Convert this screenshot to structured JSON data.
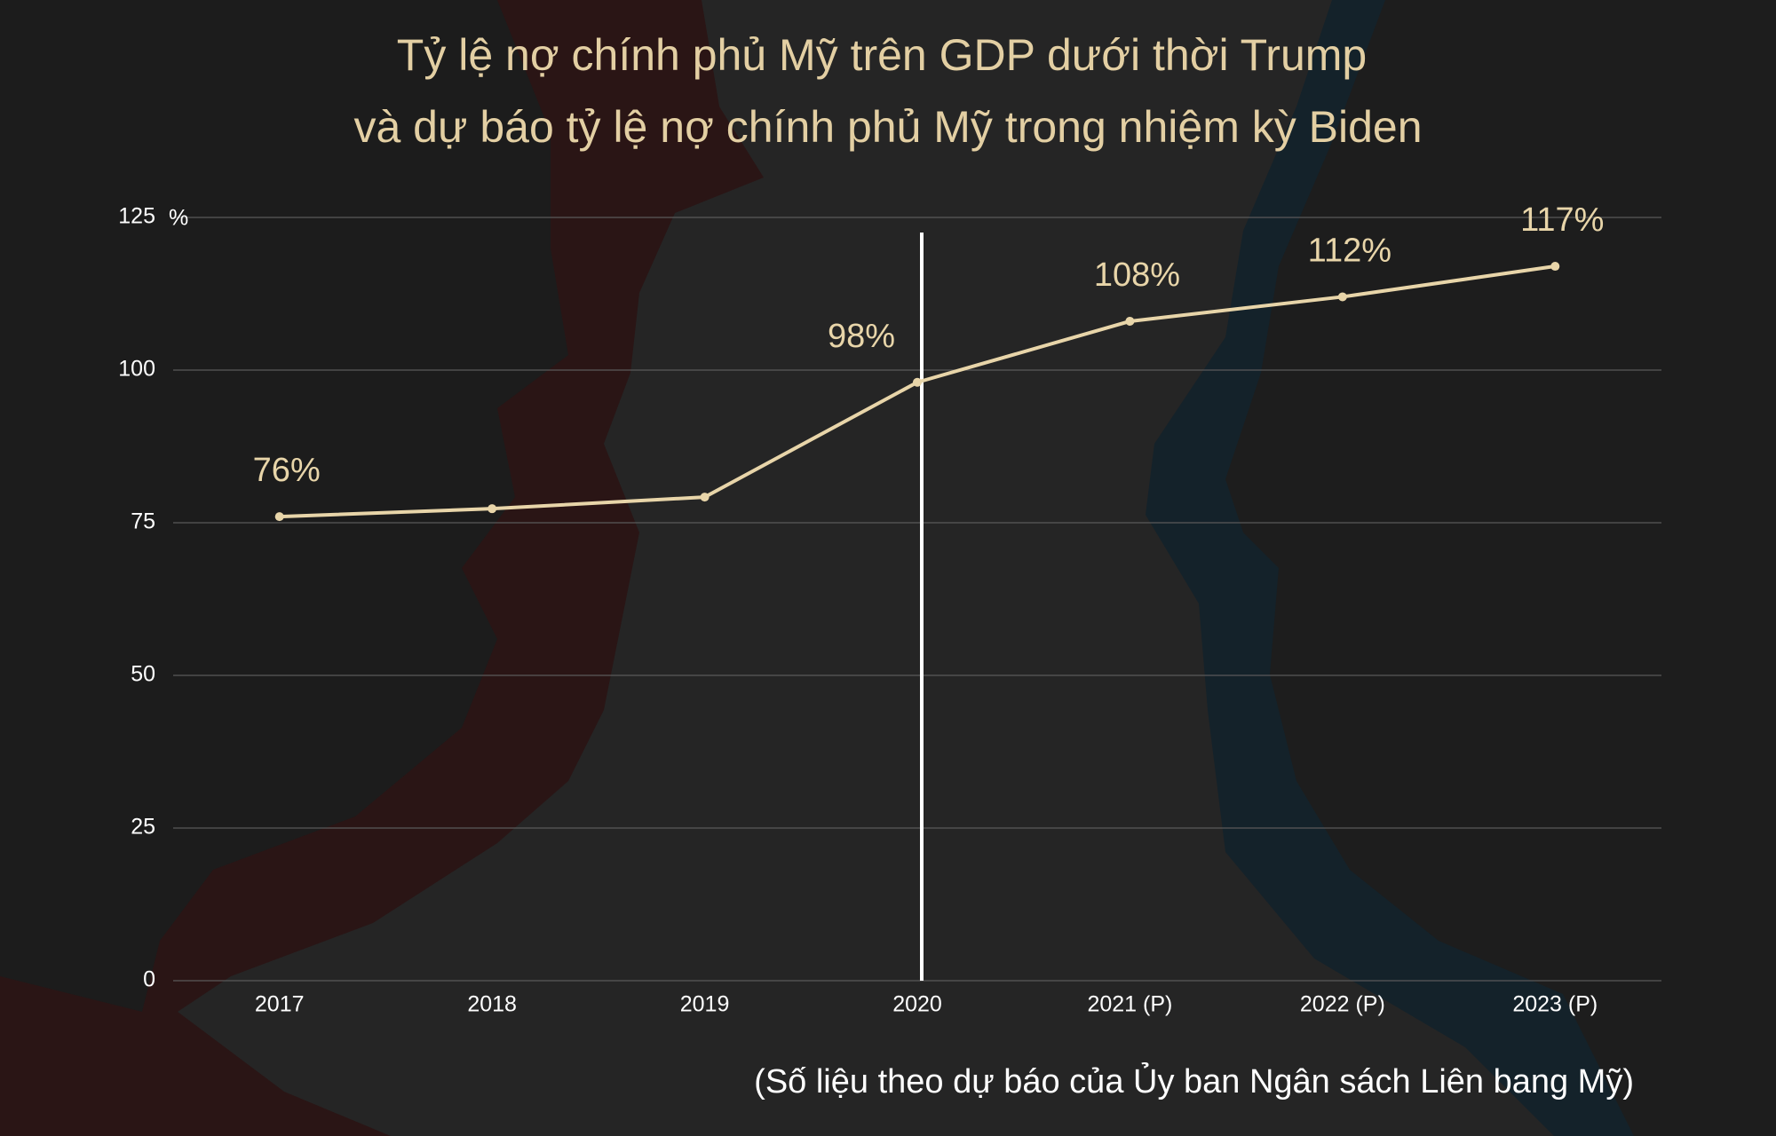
{
  "chart_data": {
    "type": "line",
    "title": [
      "Tỷ lệ nợ chính phủ Mỹ trên GDP dưới thời Trump",
      "và dự báo tỷ lệ nợ chính phủ Mỹ trong nhiệm kỳ Biden"
    ],
    "y_unit": "%",
    "categories": [
      "2017",
      "2018",
      "2019",
      "2020",
      "2021 (P)",
      "2022 (P)",
      "2023 (P)"
    ],
    "values": [
      76,
      77.3,
      79.2,
      98,
      108,
      112,
      117
    ],
    "value_labels": [
      "76%",
      null,
      null,
      "98%",
      "108%",
      "112%",
      "117%"
    ],
    "color": "#e8d5a9",
    "ylim": [
      0,
      125
    ],
    "yticks": [
      0,
      25,
      50,
      75,
      100,
      125
    ],
    "grid": true,
    "note": "(Số liệu theo dự báo của Ủy ban Ngân sách Liên bang Mỹ)"
  }
}
